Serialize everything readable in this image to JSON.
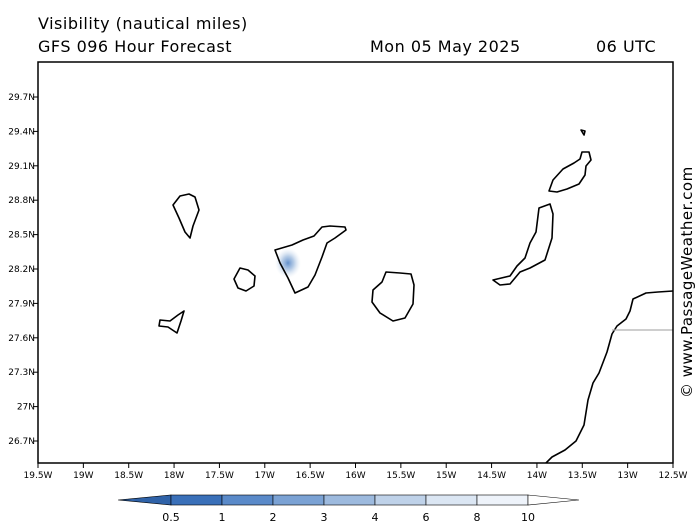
{
  "header": {
    "title": "Visibility (nautical miles)",
    "model": "GFS 096 Hour Forecast",
    "date": "Mon 05 May 2025",
    "time": "06 UTC"
  },
  "credit": "© www.PassageWeather.com",
  "map": {
    "lat_labels": [
      "29.7N",
      "29.4N",
      "29.1N",
      "28.8N",
      "28.5N",
      "28.2N",
      "27.9N",
      "27.6N",
      "27.3N",
      "27N",
      "26.7N"
    ],
    "lon_labels": [
      "19.5W",
      "19W",
      "18.5W",
      "18W",
      "17.5W",
      "17W",
      "16.5W",
      "16W",
      "15.5W",
      "15W",
      "14.5W",
      "14W",
      "13.5W",
      "13W",
      "12.5W"
    ]
  },
  "legend": {
    "labels": [
      "0.5",
      "1",
      "2",
      "3",
      "4",
      "6",
      "8",
      "10"
    ],
    "colors": [
      "#3a70b9",
      "#5a8ac9",
      "#7ba2d4",
      "#9dbade",
      "#bfd2e9",
      "#dbe6f3",
      "#eef3fa",
      "#ffffff"
    ]
  }
}
